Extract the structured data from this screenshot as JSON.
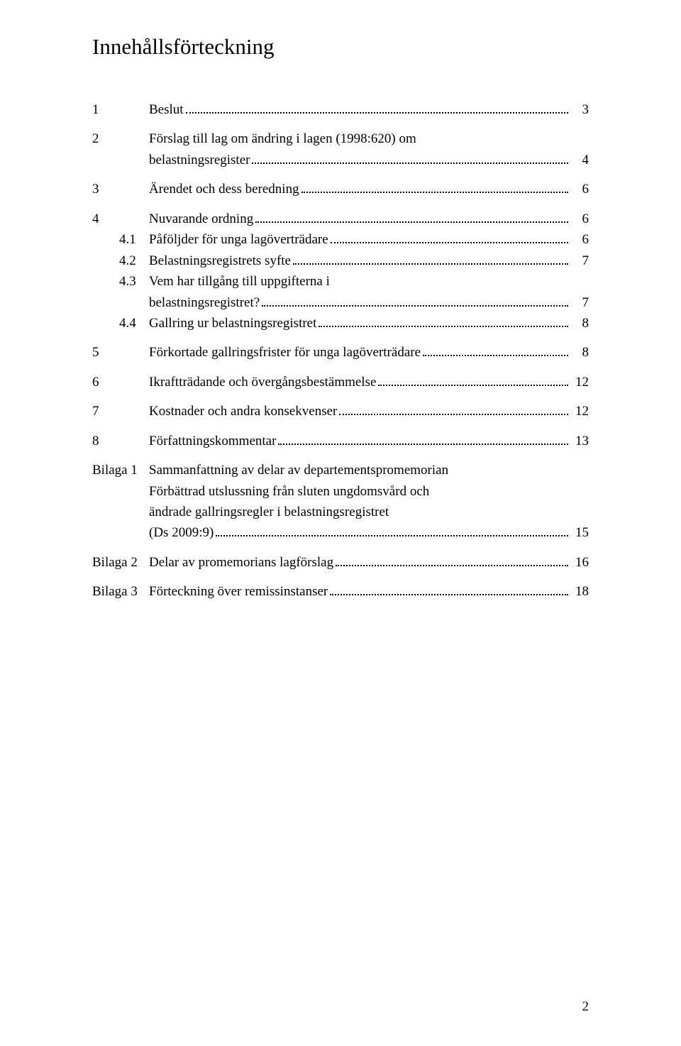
{
  "title": "Innehållsförteckning",
  "entries": {
    "e1": {
      "num": "1",
      "label": "Beslut",
      "page": "3"
    },
    "e2": {
      "num": "2",
      "label_l1": "Förslag till lag om ändring i lagen (1998:620) om",
      "label_l2": "belastningsregister",
      "page": "4"
    },
    "e3": {
      "num": "3",
      "label": "Ärendet och dess beredning",
      "page": "6"
    },
    "e4": {
      "num": "4",
      "label": "Nuvarande ordning",
      "page": "6"
    },
    "e41": {
      "num": "4.1",
      "label": "Påföljder för unga lagöverträdare",
      "page": "6"
    },
    "e42": {
      "num": "4.2",
      "label": "Belastningsregistrets syfte",
      "page": "7"
    },
    "e43": {
      "num": "4.3",
      "label_l1": "Vem har tillgång till uppgifterna i",
      "label_l2": "belastningsregistret?",
      "page": "7"
    },
    "e44": {
      "num": "4.4",
      "label": "Gallring ur belastningsregistret",
      "page": "8"
    },
    "e5": {
      "num": "5",
      "label": "Förkortade gallringsfrister för unga lagöverträdare",
      "page": "8"
    },
    "e6": {
      "num": "6",
      "label": "Ikraftträdande och övergångsbestämmelse",
      "page": "12"
    },
    "e7": {
      "num": "7",
      "label": "Kostnader och andra konsekvenser",
      "page": "12"
    },
    "e8": {
      "num": "8",
      "label": "Författningskommentar",
      "page": "13"
    },
    "b1": {
      "num": "Bilaga 1",
      "l1": "Sammanfattning av delar av departementspromemorian",
      "l2": "Förbättrad utslussning från sluten ungdomsvård och",
      "l3": "ändrade gallringsregler i belastningsregistret",
      "l4": "(Ds 2009:9)",
      "page": "15"
    },
    "b2": {
      "num": "Bilaga 2",
      "label": "Delar av promemorians lagförslag",
      "page": "16"
    },
    "b3": {
      "num": "Bilaga 3",
      "label": "Förteckning över remissinstanser",
      "page": "18"
    }
  },
  "page_number": "2"
}
